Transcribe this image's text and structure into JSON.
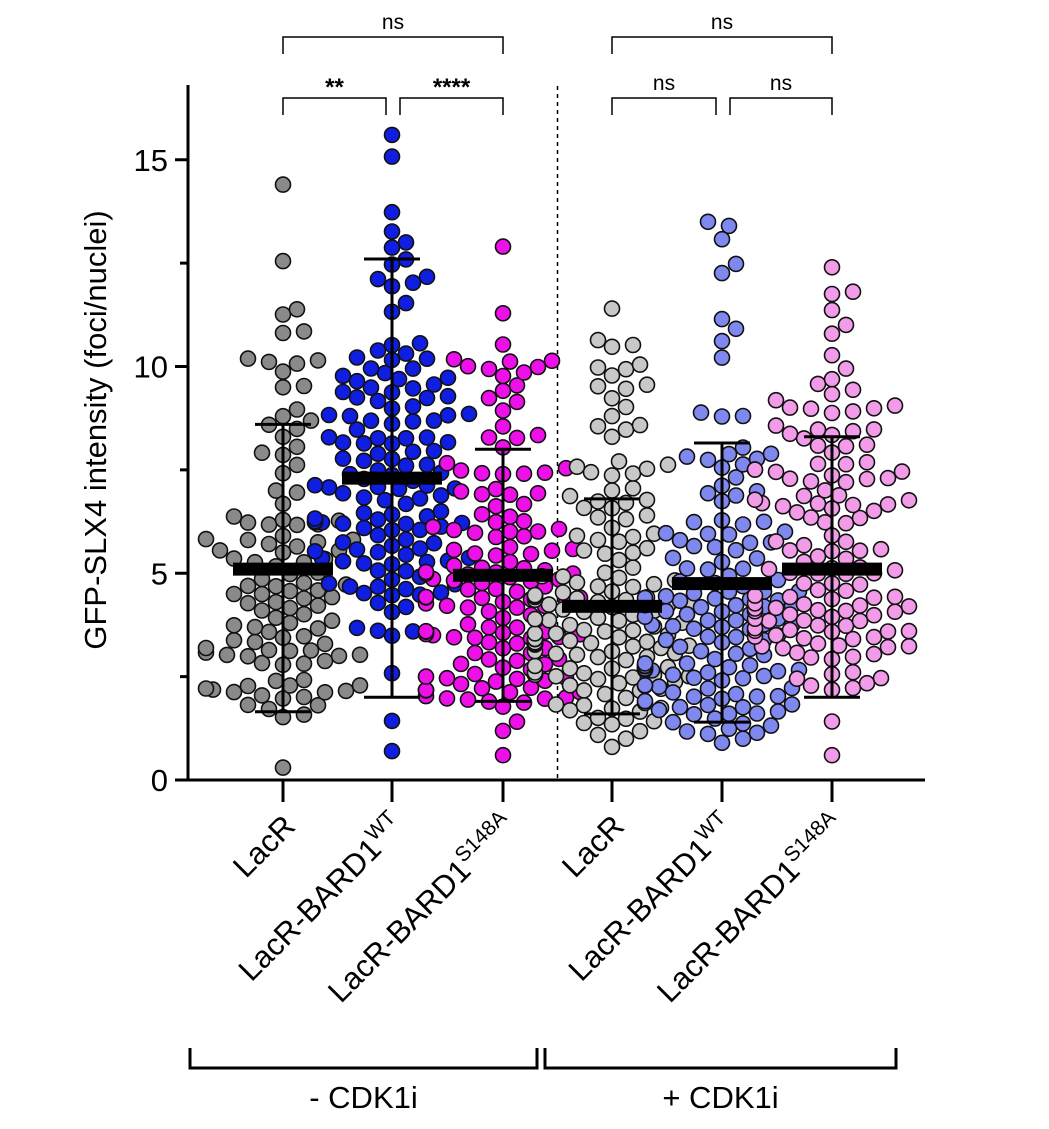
{
  "chart_data": {
    "type": "scatter",
    "ylabel": "GFP-SLX4 intensity (foci/nuclei)",
    "ylim": [
      0,
      17
    ],
    "yticks": [
      0,
      5,
      10,
      15
    ],
    "y_minor_ticks": [
      2.5,
      7.5,
      12.5
    ],
    "categories": [
      {
        "base": "LacR",
        "sup": ""
      },
      {
        "base": "LacR-BARD1",
        "sup": "WT"
      },
      {
        "base": "LacR-BARD1",
        "sup": "S148A"
      },
      {
        "base": "LacR",
        "sup": ""
      },
      {
        "base": "LacR-BARD1",
        "sup": "WT"
      },
      {
        "base": "LacR-BARD1",
        "sup": "S148A"
      }
    ],
    "groups": [
      {
        "label": "- CDK1i",
        "categories": [
          0,
          1,
          2
        ]
      },
      {
        "label": "+ CDK1i",
        "categories": [
          3,
          4,
          5
        ]
      }
    ],
    "series": [
      {
        "name": "LacR (- CDK1i)",
        "color": "#8a8a8a",
        "mean": 5.1,
        "sd_low": 1.65,
        "sd_high": 8.6,
        "n": 112,
        "min": 0.3,
        "max": 14.4,
        "shape": 1.6
      },
      {
        "name": "LacR-BARD1 WT (- CDK1i)",
        "color": "#0f1ee0",
        "mean": 7.3,
        "sd_low": 2.0,
        "sd_high": 12.6,
        "n": 138,
        "min": 0.7,
        "max": 15.6,
        "shape": 1.1
      },
      {
        "name": "LacR-BARD1 S148A (- CDK1i)",
        "color": "#ee10e8",
        "mean": 4.95,
        "sd_low": 1.9,
        "sd_high": 8.0,
        "n": 142,
        "min": 0.6,
        "max": 12.9,
        "shape": 1.5
      },
      {
        "name": "LacR (+ CDK1i)",
        "color": "#c8c8c8",
        "mean": 4.2,
        "sd_low": 1.6,
        "sd_high": 6.8,
        "n": 150,
        "min": 0.8,
        "max": 11.4,
        "shape": 1.5
      },
      {
        "name": "LacR-BARD1 WT (+ CDK1i)",
        "color": "#7e88ee",
        "mean": 4.75,
        "sd_low": 1.4,
        "sd_high": 8.15,
        "n": 148,
        "min": 0.9,
        "max": 13.5,
        "shape": 1.7
      },
      {
        "name": "LacR-BARD1 S148A (+ CDK1i)",
        "color": "#f19be9",
        "mean": 5.1,
        "sd_low": 2.0,
        "sd_high": 8.3,
        "n": 140,
        "min": 0.6,
        "max": 12.4,
        "shape": 1.2
      }
    ],
    "comparisons": [
      {
        "from": 0,
        "to": 1,
        "label": "**",
        "level": 1
      },
      {
        "from": 1,
        "to": 2,
        "label": "****",
        "level": 1
      },
      {
        "from": 0,
        "to": 2,
        "label": "ns",
        "level": 2
      },
      {
        "from": 3,
        "to": 4,
        "label": "ns",
        "level": 1
      },
      {
        "from": 4,
        "to": 5,
        "label": "ns",
        "level": 1
      },
      {
        "from": 3,
        "to": 5,
        "label": "ns",
        "level": 2
      }
    ],
    "divider_between": [
      2,
      3
    ]
  }
}
